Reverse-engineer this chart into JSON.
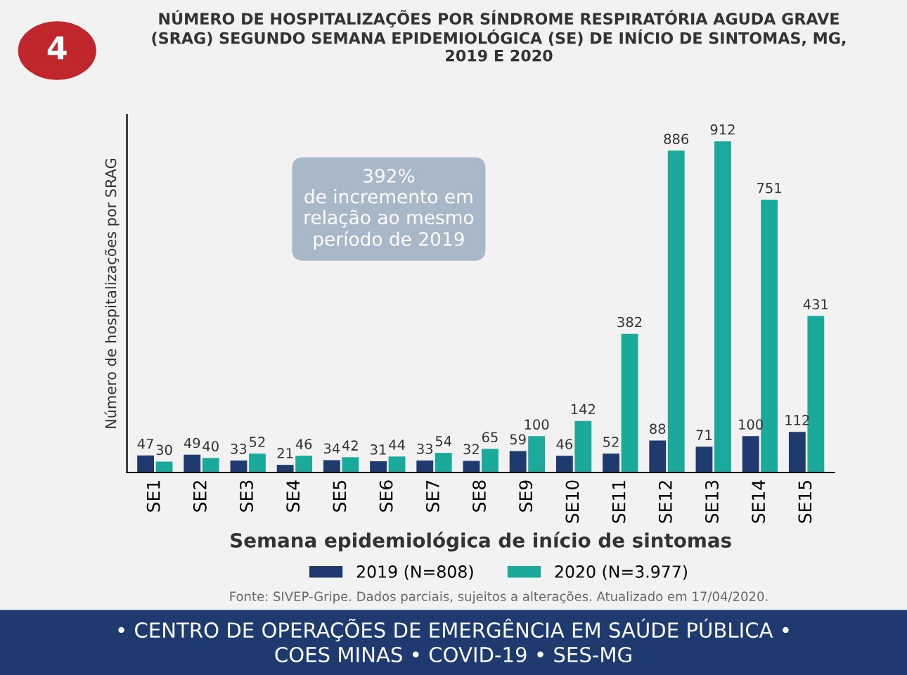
{
  "chart_data": {
    "type": "bar",
    "title": "NÚMERO DE HOSPITALIZAÇÕES POR SÍNDROME RESPIRATÓRIA AGUDA GRAVE\n(SRAG) SEGUNDO SEMANA EPIDEMIOLÓGICA (SE) DE INÍCIO DE SINTOMAS, MG,\n2019 E 2020",
    "xlabel": "Semana epidemiológica de início de sintomas",
    "ylabel": "Número de hospitalizações por SRAG",
    "categories": [
      "SE1",
      "SE2",
      "SE3",
      "SE4",
      "SE5",
      "SE6",
      "SE7",
      "SE8",
      "SE9",
      "SE10",
      "SE11",
      "SE12",
      "SE13",
      "SE14",
      "SE15"
    ],
    "series": [
      {
        "name": "2019 (N=808)",
        "color": "#1f3a6e",
        "values": [
          47,
          49,
          33,
          21,
          34,
          31,
          33,
          32,
          59,
          46,
          52,
          88,
          71,
          100,
          112
        ]
      },
      {
        "name": "2020 (N=3.977)",
        "color": "#1aa99b",
        "values": [
          30,
          40,
          52,
          46,
          42,
          44,
          54,
          65,
          100,
          142,
          382,
          886,
          912,
          751,
          431
        ]
      }
    ],
    "data_labels": true,
    "legend": "bottom",
    "grid": false,
    "annotations": [
      "4",
      "392%\nde incremento em\nrelação ao mesmo\nperíodo de 2019",
      "Fonte: SIVEP-Gripe. Dados parciais, sujeitos a alterações. Atualizado em 17/04/2020.",
      "• CENTRO DE OPERAÇÕES DE EMERGÊNCIA EM SAÚDE PÚBLICA •\nCOES MINAS • COVID-19 • SES-MG"
    ]
  }
}
